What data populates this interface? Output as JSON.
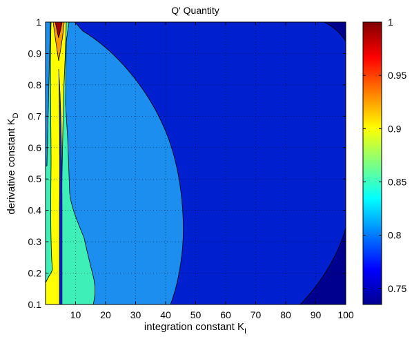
{
  "chart_data": {
    "type": "heatmap",
    "title": "Q' Quantity",
    "xlabel": {
      "main": "integration constant K",
      "subscript": "I"
    },
    "ylabel": {
      "main": "derivative constant K",
      "subscript": "D"
    },
    "xlim": [
      0,
      100
    ],
    "ylim": [
      0.1,
      1
    ],
    "x_ticks": [
      10,
      20,
      30,
      40,
      50,
      60,
      70,
      80,
      90,
      100
    ],
    "y_ticks": [
      0.1,
      0.2,
      0.3,
      0.4,
      0.5,
      0.6,
      0.7,
      0.8,
      0.9,
      1
    ],
    "colorbar": {
      "range": [
        0.735,
        1.0
      ],
      "ticks": [
        0.75,
        0.8,
        0.85,
        0.9,
        0.95,
        1
      ],
      "colormap": "jet"
    },
    "grid": "dotted",
    "regions": [
      {
        "level": 0.745,
        "color": "#00008f",
        "description": "upper and lower right corners"
      },
      {
        "level": 0.76,
        "color": "#0020d0",
        "description": "main background region"
      },
      {
        "level": 0.8,
        "color": "#1c8ef0",
        "description": "large region left of boundary from KI≈42 at KD=0.1 to KI≈16 at KD=1"
      },
      {
        "level": 0.845,
        "color": "#3ef0b8",
        "description": "band near low KI"
      },
      {
        "level": 0.895,
        "color": "#ffff00",
        "description": "narrow band near KI≈3-6"
      },
      {
        "level": 0.935,
        "color": "#ff9a00",
        "description": "tip near KI≈5, KD>0.85"
      },
      {
        "level": 0.99,
        "color": "#a00000",
        "description": "peak near KI≈5, KD≈1"
      }
    ]
  }
}
